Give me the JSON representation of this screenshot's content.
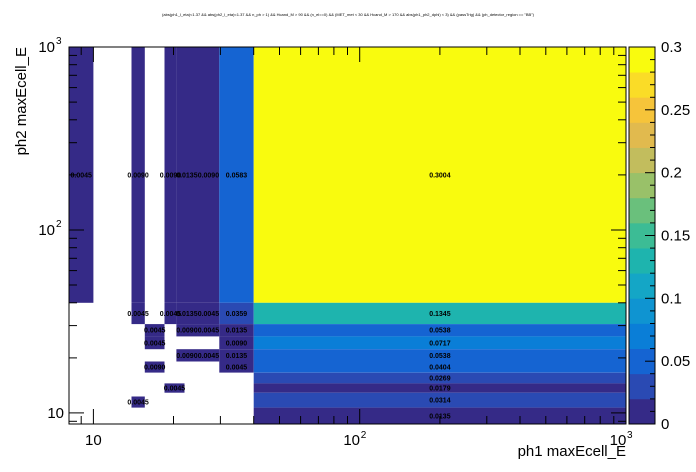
{
  "chart_data": {
    "type": "heatmap",
    "title": "(abs(ph1_l_eta)<1.37 && abs(ph2_l_eta)<1.37 && n_ph > 1) && Hcand_M > 90 && (n_el==0) && (MET_met < 30 && Hcand_M > 170 && abs(ph1_ph2_dphi) < 3) && (passTrig) && (ph_detector_region == \"BB\")",
    "xlabel": "ph1 maxEcell_E",
    "ylabel": "ph2 maxEcell_E",
    "xscale": "log",
    "yscale": "log",
    "xlim": [
      8.1,
      1000
    ],
    "ylim": [
      8.7,
      1000
    ],
    "x_ticks": [
      {
        "base": "10",
        "exp": ""
      },
      {
        "base": "10",
        "exp": "2"
      },
      {
        "base": "10",
        "exp": "3"
      }
    ],
    "y_ticks": [
      {
        "base": "10",
        "exp": ""
      },
      {
        "base": "10",
        "exp": "2"
      },
      {
        "base": "10",
        "exp": "3"
      }
    ],
    "colorbar": {
      "min": 0,
      "max": 0.3,
      "ticks": [
        "0",
        "0.05",
        "0.1",
        "0.15",
        "0.2",
        "0.25",
        "0.3"
      ],
      "palette": [
        "#352a87",
        "#2a4ab3",
        "#1564d2",
        "#0a7ed7",
        "#0f94d1",
        "#14a6c6",
        "#1eb4ae",
        "#3cbc95",
        "#6ac07c",
        "#99c169",
        "#c2bd5d",
        "#e1ba4e",
        "#f6c43a",
        "#fadc27",
        "#f9fb0e"
      ]
    },
    "cells": [
      {
        "x0": 8.1,
        "x1": 10.0,
        "y0": 40,
        "y1": 1000,
        "value": 0.0045,
        "label": "0.0045"
      },
      {
        "x0": 13.9,
        "x1": 15.6,
        "y0": 40,
        "y1": 1000,
        "value": 0.009,
        "label": "0.0090"
      },
      {
        "x0": 18.5,
        "x1": 20.5,
        "y0": 40,
        "y1": 1000,
        "value": 0.009,
        "label": "0.0090"
      },
      {
        "x0": 20.5,
        "x1": 24.6,
        "y0": 40,
        "y1": 1000,
        "value": 0.0135,
        "label": "0.0135"
      },
      {
        "x0": 24.6,
        "x1": 29.7,
        "y0": 40,
        "y1": 1000,
        "value": 0.009,
        "label": "0.0090"
      },
      {
        "x0": 29.7,
        "x1": 40,
        "y0": 40,
        "y1": 1000,
        "value": 0.0583,
        "label": "0.0583"
      },
      {
        "x0": 40,
        "x1": 1000,
        "y0": 40,
        "y1": 1000,
        "value": 0.3004,
        "label": "0.3004"
      },
      {
        "x0": 13.9,
        "x1": 15.6,
        "y0": 30.6,
        "y1": 40,
        "value": 0.0045,
        "label": "0.0045"
      },
      {
        "x0": 18.5,
        "x1": 20.5,
        "y0": 30.6,
        "y1": 40,
        "value": 0.0045,
        "label": "0.0045"
      },
      {
        "x0": 20.5,
        "x1": 24.6,
        "y0": 30.6,
        "y1": 40,
        "value": 0.0135,
        "label": "0.0135"
      },
      {
        "x0": 24.6,
        "x1": 29.7,
        "y0": 30.6,
        "y1": 40,
        "value": 0.0045,
        "label": "0.0045"
      },
      {
        "x0": 29.7,
        "x1": 40,
        "y0": 30.6,
        "y1": 40,
        "value": 0.0359,
        "label": "0.0359"
      },
      {
        "x0": 40,
        "x1": 1000,
        "y0": 30.6,
        "y1": 40,
        "value": 0.1345,
        "label": "0.1345"
      },
      {
        "x0": 15.6,
        "x1": 18.5,
        "y0": 26.2,
        "y1": 30.6,
        "value": 0.0045,
        "label": "0.0045"
      },
      {
        "x0": 20.5,
        "x1": 24.6,
        "y0": 26.2,
        "y1": 30.6,
        "value": 0.009,
        "label": "0.0090"
      },
      {
        "x0": 24.6,
        "x1": 29.7,
        "y0": 26.2,
        "y1": 30.6,
        "value": 0.0045,
        "label": "0.0045"
      },
      {
        "x0": 29.7,
        "x1": 40,
        "y0": 26.2,
        "y1": 30.6,
        "value": 0.0135,
        "label": "0.0135"
      },
      {
        "x0": 40,
        "x1": 1000,
        "y0": 26.2,
        "y1": 30.6,
        "value": 0.0538,
        "label": "0.0538"
      },
      {
        "x0": 15.6,
        "x1": 18.5,
        "y0": 22.3,
        "y1": 26.2,
        "value": 0.0045,
        "label": "0.0045"
      },
      {
        "x0": 29.7,
        "x1": 40,
        "y0": 22.3,
        "y1": 26.2,
        "value": 0.009,
        "label": "0.0090"
      },
      {
        "x0": 40,
        "x1": 1000,
        "y0": 22.3,
        "y1": 26.2,
        "value": 0.0717,
        "label": "0.0717"
      },
      {
        "x0": 20.5,
        "x1": 24.6,
        "y0": 19.1,
        "y1": 22.3,
        "value": 0.009,
        "label": "0.0090"
      },
      {
        "x0": 24.6,
        "x1": 29.7,
        "y0": 19.1,
        "y1": 22.3,
        "value": 0.0045,
        "label": "0.0045"
      },
      {
        "x0": 29.7,
        "x1": 40,
        "y0": 19.1,
        "y1": 22.3,
        "value": 0.0135,
        "label": "0.0135"
      },
      {
        "x0": 40,
        "x1": 1000,
        "y0": 19.1,
        "y1": 22.3,
        "value": 0.0538,
        "label": "0.0538"
      },
      {
        "x0": 15.6,
        "x1": 18.5,
        "y0": 16.6,
        "y1": 19.1,
        "value": 0.009,
        "label": "0.0090"
      },
      {
        "x0": 29.7,
        "x1": 40,
        "y0": 16.6,
        "y1": 19.1,
        "value": 0.0045,
        "label": "0.0045"
      },
      {
        "x0": 40,
        "x1": 1000,
        "y0": 16.6,
        "y1": 19.1,
        "value": 0.0404,
        "label": "0.0404"
      },
      {
        "x0": 40,
        "x1": 1000,
        "y0": 14.5,
        "y1": 16.6,
        "value": 0.0269,
        "label": "0.0269"
      },
      {
        "x0": 18.5,
        "x1": 22.0,
        "y0": 12.9,
        "y1": 14.5,
        "value": 0.0045,
        "label": "0.0045"
      },
      {
        "x0": 40,
        "x1": 1000,
        "y0": 12.9,
        "y1": 14.5,
        "value": 0.0179,
        "label": "0.0179"
      },
      {
        "x0": 13.9,
        "x1": 15.6,
        "y0": 10.7,
        "y1": 12.3,
        "value": 0.0045,
        "label": "0.0045"
      },
      {
        "x0": 40,
        "x1": 1000,
        "y0": 10.7,
        "y1": 12.9,
        "value": 0.0314,
        "label": "0.0314"
      },
      {
        "x0": 40,
        "x1": 1000,
        "y0": 8.7,
        "y1": 10.7,
        "value": 0.0135,
        "label": "0.0135"
      }
    ]
  }
}
